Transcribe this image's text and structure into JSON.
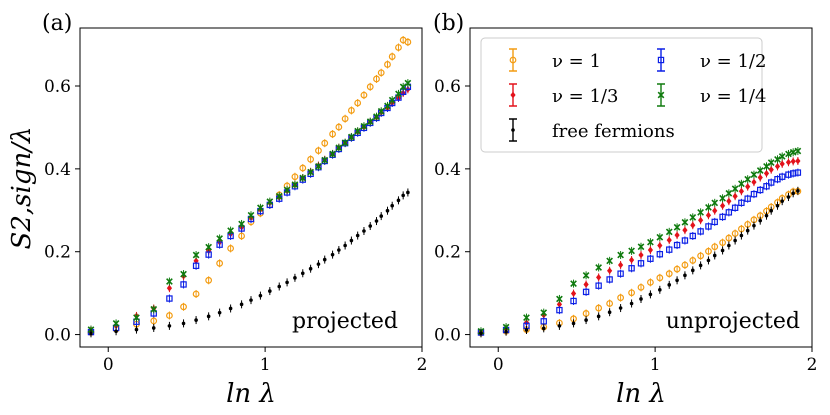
{
  "chart_data": [
    {
      "type": "scatter",
      "panel_label": "(a)",
      "annotation": "projected",
      "ylabel": "S_{2,sign}/λ",
      "ylabel_display": "S2,sign/λ",
      "xlabel": "ln λ",
      "xlabel_display": "ln λ",
      "xlim": [
        -0.18,
        2.0
      ],
      "ylim": [
        -0.03,
        0.74
      ],
      "xticks": [
        0,
        1,
        2
      ],
      "xtick_labels": [
        "0",
        "1",
        "2"
      ],
      "yticks": [
        0.0,
        0.2,
        0.4,
        0.6
      ],
      "ytick_labels": [
        "0.0",
        "0.2",
        "0.4",
        "0.6"
      ],
      "x": [
        -0.11,
        0.05,
        0.18,
        0.29,
        0.39,
        0.48,
        0.56,
        0.64,
        0.71,
        0.78,
        0.85,
        0.91,
        0.97,
        1.03,
        1.09,
        1.14,
        1.19,
        1.24,
        1.29,
        1.34,
        1.38,
        1.43,
        1.47,
        1.51,
        1.55,
        1.59,
        1.63,
        1.67,
        1.71,
        1.74,
        1.78,
        1.81,
        1.85,
        1.88,
        1.91
      ],
      "series": [
        {
          "name": "ν = 1",
          "color": "#f39c12",
          "marker": "circle",
          "values": [
            0.005,
            0.013,
            0.025,
            0.033,
            0.046,
            0.067,
            0.098,
            0.131,
            0.172,
            0.208,
            0.238,
            0.272,
            0.293,
            0.313,
            0.337,
            0.359,
            0.381,
            0.402,
            0.423,
            0.444,
            0.462,
            0.484,
            0.501,
            0.521,
            0.541,
            0.559,
            0.578,
            0.598,
            0.617,
            0.632,
            0.652,
            0.671,
            0.693,
            0.711,
            0.706
          ]
        },
        {
          "name": "ν = 1/3",
          "color": "#e3121b",
          "marker": "diamond",
          "values": [
            0.012,
            0.022,
            0.045,
            0.063,
            0.112,
            0.141,
            0.178,
            0.202,
            0.223,
            0.243,
            0.259,
            0.282,
            0.302,
            0.318,
            0.331,
            0.347,
            0.361,
            0.378,
            0.393,
            0.408,
            0.422,
            0.436,
            0.451,
            0.463,
            0.476,
            0.489,
            0.501,
            0.513,
            0.524,
            0.536,
            0.547,
            0.559,
            0.571,
            0.583,
            0.592
          ]
        },
        {
          "name": "ν = 1/2",
          "color": "#0b1fe6",
          "marker": "square",
          "values": [
            0.006,
            0.016,
            0.031,
            0.051,
            0.087,
            0.121,
            0.166,
            0.193,
            0.217,
            0.238,
            0.256,
            0.279,
            0.298,
            0.313,
            0.328,
            0.343,
            0.358,
            0.374,
            0.388,
            0.404,
            0.419,
            0.434,
            0.448,
            0.462,
            0.475,
            0.487,
            0.499,
            0.511,
            0.523,
            0.535,
            0.547,
            0.559,
            0.572,
            0.586,
            0.598
          ]
        },
        {
          "name": "ν = 1/4",
          "color": "#0e7a0d",
          "marker": "x",
          "values": [
            0.012,
            0.027,
            0.041,
            0.061,
            0.128,
            0.146,
            0.192,
            0.211,
            0.232,
            0.251,
            0.267,
            0.288,
            0.306,
            0.321,
            0.334,
            0.349,
            0.362,
            0.378,
            0.392,
            0.406,
            0.421,
            0.436,
            0.451,
            0.463,
            0.477,
            0.491,
            0.503,
            0.514,
            0.526,
            0.539,
            0.552,
            0.566,
            0.581,
            0.598,
            0.607
          ]
        },
        {
          "name": "free fermions",
          "color": "#000000",
          "marker": "dot",
          "values": [
            0.003,
            0.008,
            0.012,
            0.016,
            0.021,
            0.027,
            0.035,
            0.044,
            0.053,
            0.063,
            0.073,
            0.083,
            0.094,
            0.105,
            0.116,
            0.126,
            0.137,
            0.148,
            0.159,
            0.17,
            0.181,
            0.193,
            0.204,
            0.215,
            0.227,
            0.239,
            0.25,
            0.262,
            0.274,
            0.286,
            0.299,
            0.311,
            0.324,
            0.336,
            0.343
          ]
        }
      ]
    },
    {
      "type": "scatter",
      "panel_label": "(b)",
      "annotation": "unprojected",
      "xlabel": "ln λ",
      "xlabel_display": "ln λ",
      "xlim": [
        -0.18,
        2.0
      ],
      "ylim": [
        -0.03,
        0.74
      ],
      "xticks": [
        0,
        1,
        2
      ],
      "xtick_labels": [
        "0",
        "1",
        "2"
      ],
      "yticks": [
        0.0,
        0.2,
        0.4,
        0.6
      ],
      "ytick_labels": [
        "0.0",
        "0.2",
        "0.4",
        "0.6"
      ],
      "x": [
        -0.11,
        0.05,
        0.18,
        0.29,
        0.39,
        0.48,
        0.56,
        0.64,
        0.71,
        0.78,
        0.85,
        0.91,
        0.97,
        1.03,
        1.09,
        1.14,
        1.19,
        1.24,
        1.29,
        1.34,
        1.38,
        1.43,
        1.47,
        1.51,
        1.55,
        1.59,
        1.63,
        1.67,
        1.71,
        1.74,
        1.78,
        1.81,
        1.85,
        1.88,
        1.91
      ],
      "series": [
        {
          "name": "ν = 1",
          "color": "#f39c12",
          "marker": "circle",
          "values": [
            0.004,
            0.008,
            0.012,
            0.018,
            0.028,
            0.038,
            0.051,
            0.064,
            0.075,
            0.089,
            0.101,
            0.114,
            0.126,
            0.137,
            0.147,
            0.158,
            0.168,
            0.179,
            0.19,
            0.201,
            0.212,
            0.222,
            0.233,
            0.244,
            0.255,
            0.266,
            0.277,
            0.287,
            0.298,
            0.308,
            0.319,
            0.329,
            0.338,
            0.345,
            0.346
          ]
        },
        {
          "name": "ν = 1/3",
          "color": "#e3121b",
          "marker": "diamond",
          "values": [
            0.006,
            0.014,
            0.029,
            0.047,
            0.073,
            0.099,
            0.121,
            0.138,
            0.154,
            0.168,
            0.18,
            0.192,
            0.204,
            0.215,
            0.228,
            0.24,
            0.252,
            0.264,
            0.276,
            0.288,
            0.299,
            0.311,
            0.322,
            0.334,
            0.346,
            0.357,
            0.368,
            0.379,
            0.389,
            0.398,
            0.406,
            0.412,
            0.416,
            0.418,
            0.419
          ]
        },
        {
          "name": "ν = 1/2",
          "color": "#0b1fe6",
          "marker": "square",
          "values": [
            0.005,
            0.011,
            0.021,
            0.032,
            0.059,
            0.081,
            0.103,
            0.118,
            0.133,
            0.147,
            0.16,
            0.172,
            0.183,
            0.194,
            0.205,
            0.216,
            0.227,
            0.238,
            0.249,
            0.261,
            0.272,
            0.284,
            0.295,
            0.306,
            0.318,
            0.328,
            0.339,
            0.349,
            0.358,
            0.367,
            0.375,
            0.381,
            0.386,
            0.389,
            0.391
          ]
        },
        {
          "name": "ν = 1/4",
          "color": "#0e7a0d",
          "marker": "x",
          "values": [
            0.008,
            0.018,
            0.041,
            0.053,
            0.086,
            0.123,
            0.143,
            0.162,
            0.178,
            0.192,
            0.202,
            0.212,
            0.223,
            0.235,
            0.248,
            0.259,
            0.271,
            0.283,
            0.295,
            0.307,
            0.318,
            0.329,
            0.341,
            0.352,
            0.364,
            0.375,
            0.386,
            0.396,
            0.406,
            0.415,
            0.423,
            0.43,
            0.436,
            0.44,
            0.443
          ]
        },
        {
          "name": "free fermions",
          "color": "#000000",
          "marker": "dot",
          "values": [
            0.003,
            0.007,
            0.011,
            0.015,
            0.021,
            0.027,
            0.035,
            0.044,
            0.054,
            0.064,
            0.075,
            0.086,
            0.097,
            0.108,
            0.12,
            0.131,
            0.143,
            0.155,
            0.167,
            0.179,
            0.191,
            0.203,
            0.215,
            0.227,
            0.239,
            0.251,
            0.263,
            0.275,
            0.287,
            0.299,
            0.311,
            0.322,
            0.332,
            0.341,
            0.347
          ]
        }
      ],
      "legend": {
        "position": "top-left",
        "columns": 2,
        "entries": [
          "ν = 1",
          "ν = 1/2",
          "ν = 1/3",
          "ν = 1/4",
          "free fermions"
        ]
      }
    }
  ]
}
